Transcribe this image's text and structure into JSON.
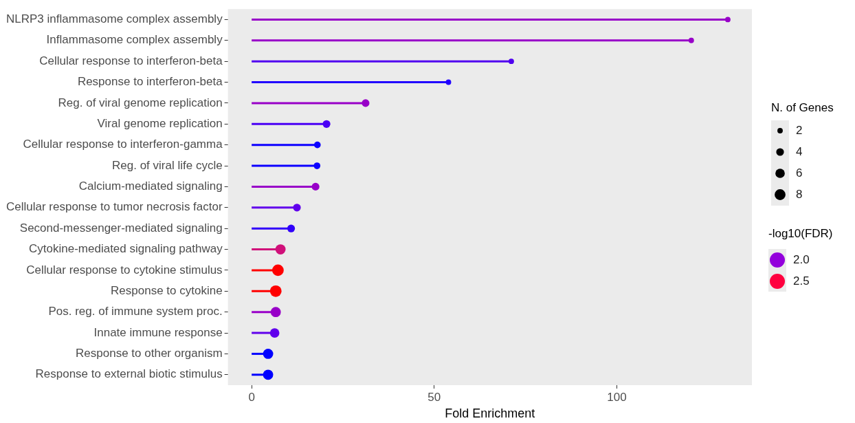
{
  "chart_data": {
    "type": "lollipop",
    "orientation": "horizontal",
    "xlabel": "Fold Enrichment",
    "categories": [
      "NLRP3 inflammasome complex assembly",
      "Inflammasome complex assembly",
      "Cellular response to interferon-beta",
      "Response to interferon-beta",
      "Reg. of viral genome replication",
      "Viral genome replication",
      "Cellular response to interferon-gamma",
      "Reg. of viral life cycle",
      "Calcium-mediated signaling",
      "Cellular response to tumor necrosis factor",
      "Second-messenger-mediated signaling",
      "Cytokine-mediated signaling pathway",
      "Cellular response to cytokine stimulus",
      "Response to cytokine",
      "Pos. reg. of immune system proc.",
      "Innate immune response",
      "Response to other organism",
      "Response to external biotic stimulus"
    ],
    "values": [
      130.4,
      120.4,
      71.1,
      53.9,
      31.2,
      20.5,
      18.0,
      17.9,
      17.5,
      12.4,
      10.8,
      7.9,
      7.2,
      6.6,
      6.6,
      6.3,
      4.5,
      4.5
    ],
    "colors": [
      "#9800c8",
      "#9800c8",
      "#5000f0",
      "#2000ff",
      "#9800c8",
      "#4a00f5",
      "#0c00ff",
      "#0c00ff",
      "#9800c8",
      "#6000ec",
      "#3000fa",
      "#d0107a",
      "#ff0000",
      "#ff0000",
      "#9800c8",
      "#6000ec",
      "#0000ff",
      "#0000ff"
    ],
    "sizes": [
      2,
      2,
      2,
      2,
      4,
      4,
      3,
      3,
      4,
      4,
      4,
      7,
      9,
      9,
      7,
      6,
      7,
      7
    ],
    "size_legend": [
      2,
      4,
      6,
      8
    ],
    "legend_title": "N. of Genes",
    "clabel": "-log10(FDR)",
    "clim": [
      1.4,
      2.7
    ],
    "cticks": [
      {
        "value": 2,
        "label": "2.0"
      },
      {
        "value": 2.5,
        "label": "2.5"
      }
    ],
    "xlim": [
      -6.5,
      137
    ],
    "xticks": [
      0,
      50,
      100
    ]
  }
}
